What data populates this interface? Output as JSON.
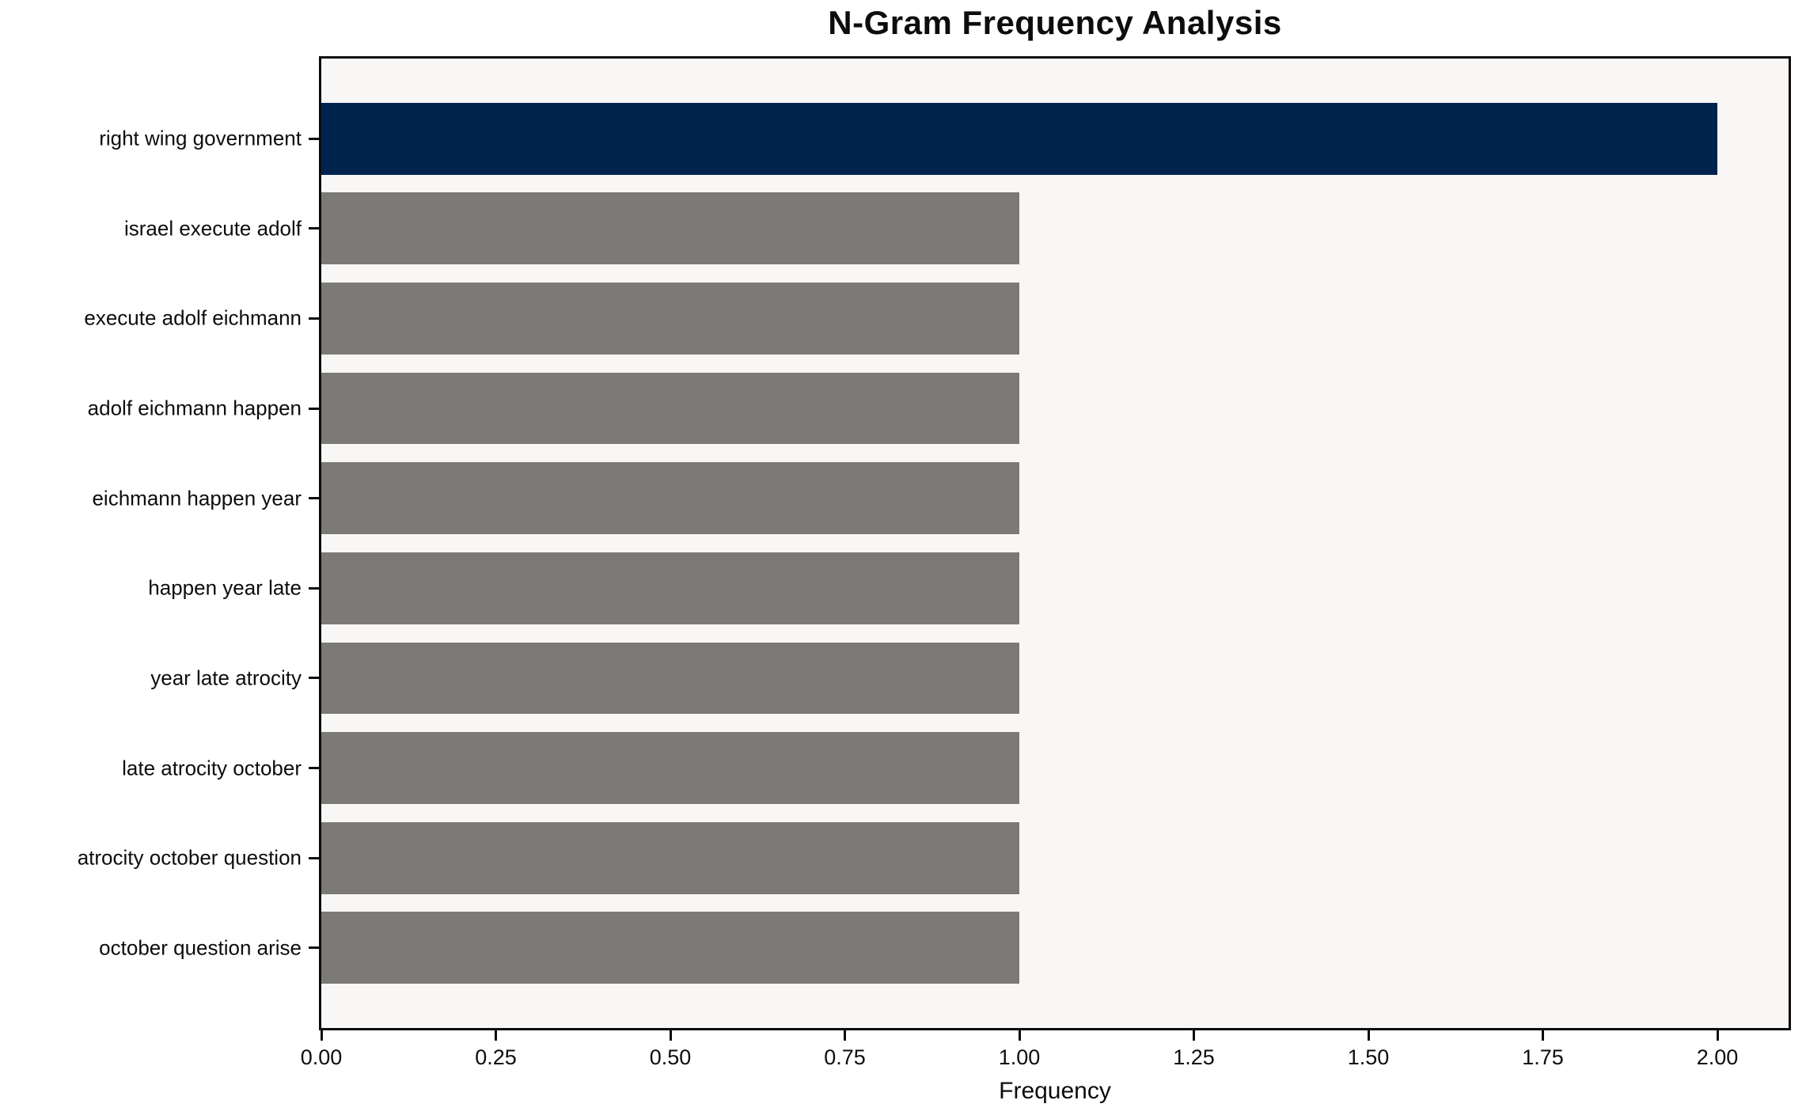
{
  "chart_data": {
    "type": "bar",
    "orientation": "horizontal",
    "title": "N-Gram Frequency Analysis",
    "xlabel": "Frequency",
    "ylabel": "",
    "categories": [
      "right wing government",
      "israel execute adolf",
      "execute adolf eichmann",
      "adolf eichmann happen",
      "eichmann happen year",
      "happen year late",
      "year late atrocity",
      "late atrocity october",
      "atrocity october question",
      "october question arise"
    ],
    "values": [
      2,
      1,
      1,
      1,
      1,
      1,
      1,
      1,
      1,
      1
    ],
    "bar_colors": [
      "#00234e",
      "#7b7a77",
      "#7b7a77",
      "#7b7a77",
      "#7b7a77",
      "#7b7a77",
      "#7b7a77",
      "#7b7a77",
      "#7b7a77",
      "#7b7a77"
    ],
    "xtick_labels": [
      "0.00",
      "0.25",
      "0.50",
      "0.75",
      "1.00",
      "1.25",
      "1.50",
      "1.75",
      "2.00"
    ],
    "xtick_values": [
      0,
      0.25,
      0.5,
      0.75,
      1,
      1.25,
      1.5,
      1.75,
      2
    ],
    "xlim": [
      0,
      2.102
    ],
    "grid": false,
    "legend": null,
    "colors": {
      "highlight_bar": "#00234e",
      "default_bar": "#7b7a77",
      "plot_background": "#f8f7f6",
      "figure_background": "#ffffff",
      "spine": "#0d0d0d",
      "text": "#0d0d0d"
    }
  }
}
